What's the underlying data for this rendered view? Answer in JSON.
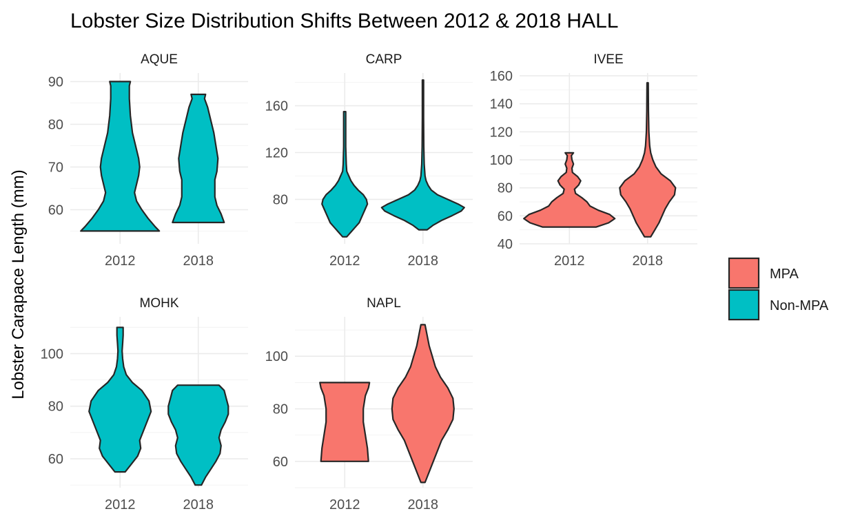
{
  "chart_data": {
    "type": "violin",
    "title": "Lobster Size Distribution Shifts Between 2012 & 2018 HALL",
    "ylabel": "Lobster Carapace Length (mm)",
    "xlabel": "",
    "categories": [
      "2012",
      "2018"
    ],
    "colors": {
      "MPA": "#F8766D",
      "Non-MPA": "#00BFC4"
    },
    "legend": {
      "position": "right",
      "entries": [
        {
          "label": "MPA",
          "color": "#F8766D"
        },
        {
          "label": "Non-MPA",
          "color": "#00BFC4"
        }
      ]
    },
    "panels": [
      {
        "site": "AQUE",
        "group": "Non-MPA",
        "ylim": [
          52,
          92
        ],
        "yticks": [
          60,
          70,
          80,
          90
        ],
        "violins": [
          {
            "year": "2012",
            "min": 55,
            "max": 90,
            "profile": [
              [
                55,
                0.38
              ],
              [
                56,
                0.34
              ],
              [
                58,
                0.27
              ],
              [
                60,
                0.21
              ],
              [
                62,
                0.16
              ],
              [
                64,
                0.14
              ],
              [
                66,
                0.16
              ],
              [
                68,
                0.18
              ],
              [
                70,
                0.19
              ],
              [
                72,
                0.18
              ],
              [
                75,
                0.15
              ],
              [
                78,
                0.12
              ],
              [
                82,
                0.1
              ],
              [
                86,
                0.09
              ],
              [
                89,
                0.09
              ],
              [
                90,
                0.1
              ]
            ]
          },
          {
            "year": "2018",
            "min": 57,
            "max": 87,
            "profile": [
              [
                57,
                0.25
              ],
              [
                59,
                0.22
              ],
              [
                61,
                0.18
              ],
              [
                63,
                0.16
              ],
              [
                65,
                0.16
              ],
              [
                67,
                0.16
              ],
              [
                69,
                0.18
              ],
              [
                72,
                0.19
              ],
              [
                75,
                0.17
              ],
              [
                78,
                0.15
              ],
              [
                81,
                0.12
              ],
              [
                84,
                0.09
              ],
              [
                86,
                0.06
              ],
              [
                87,
                0.07
              ]
            ]
          }
        ]
      },
      {
        "site": "CARP",
        "group": "Non-MPA",
        "ylim": [
          42,
          188
        ],
        "yticks": [
          80,
          120,
          160
        ],
        "violins": [
          {
            "year": "2012",
            "min": 48,
            "max": 155,
            "profile": [
              [
                48,
                0.02
              ],
              [
                52,
                0.06
              ],
              [
                56,
                0.1
              ],
              [
                60,
                0.14
              ],
              [
                64,
                0.16
              ],
              [
                68,
                0.18
              ],
              [
                72,
                0.2
              ],
              [
                76,
                0.22
              ],
              [
                80,
                0.21
              ],
              [
                84,
                0.18
              ],
              [
                88,
                0.13
              ],
              [
                92,
                0.09
              ],
              [
                96,
                0.06
              ],
              [
                100,
                0.04
              ],
              [
                104,
                0.02
              ],
              [
                110,
                0.015
              ],
              [
                125,
                0.01
              ],
              [
                140,
                0.01
              ],
              [
                150,
                0.01
              ],
              [
                155,
                0.01
              ]
            ]
          },
          {
            "year": "2018",
            "min": 54,
            "max": 182,
            "profile": [
              [
                54,
                0.04
              ],
              [
                58,
                0.1
              ],
              [
                62,
                0.18
              ],
              [
                66,
                0.28
              ],
              [
                70,
                0.37
              ],
              [
                73,
                0.4
              ],
              [
                76,
                0.34
              ],
              [
                80,
                0.24
              ],
              [
                84,
                0.14
              ],
              [
                88,
                0.08
              ],
              [
                92,
                0.05
              ],
              [
                96,
                0.03
              ],
              [
                100,
                0.02
              ],
              [
                110,
                0.012
              ],
              [
                125,
                0.008
              ],
              [
                150,
                0.006
              ],
              [
                182,
                0.006
              ]
            ]
          }
        ]
      },
      {
        "site": "IVEE",
        "group": "MPA",
        "ylim": [
          40,
          162
        ],
        "yticks": [
          40,
          60,
          80,
          100,
          120,
          140,
          160
        ],
        "violins": [
          {
            "year": "2012",
            "min": 52,
            "max": 105,
            "profile": [
              [
                52,
                0.26
              ],
              [
                55,
                0.38
              ],
              [
                58,
                0.44
              ],
              [
                61,
                0.39
              ],
              [
                64,
                0.28
              ],
              [
                67,
                0.2
              ],
              [
                70,
                0.17
              ],
              [
                73,
                0.12
              ],
              [
                76,
                0.06
              ],
              [
                79,
                0.05
              ],
              [
                82,
                0.09
              ],
              [
                85,
                0.11
              ],
              [
                88,
                0.08
              ],
              [
                91,
                0.03
              ],
              [
                94,
                0.025
              ],
              [
                97,
                0.04
              ],
              [
                100,
                0.025
              ],
              [
                103,
                0.02
              ],
              [
                105,
                0.04
              ]
            ]
          },
          {
            "year": "2018",
            "min": 45,
            "max": 155,
            "profile": [
              [
                45,
                0.03
              ],
              [
                50,
                0.07
              ],
              [
                55,
                0.11
              ],
              [
                60,
                0.14
              ],
              [
                65,
                0.17
              ],
              [
                70,
                0.21
              ],
              [
                75,
                0.26
              ],
              [
                80,
                0.27
              ],
              [
                85,
                0.22
              ],
              [
                90,
                0.13
              ],
              [
                95,
                0.08
              ],
              [
                100,
                0.05
              ],
              [
                105,
                0.03
              ],
              [
                110,
                0.02
              ],
              [
                120,
                0.012
              ],
              [
                135,
                0.008
              ],
              [
                155,
                0.006
              ]
            ]
          }
        ]
      },
      {
        "site": "MOHK",
        "group": "Non-MPA",
        "ylim": [
          49,
          114
        ],
        "yticks": [
          60,
          80,
          100
        ],
        "violins": [
          {
            "year": "2012",
            "min": 55,
            "max": 110,
            "profile": [
              [
                55,
                0.05
              ],
              [
                58,
                0.11
              ],
              [
                61,
                0.17
              ],
              [
                64,
                0.2
              ],
              [
                67,
                0.19
              ],
              [
                70,
                0.22
              ],
              [
                74,
                0.26
              ],
              [
                78,
                0.3
              ],
              [
                82,
                0.28
              ],
              [
                86,
                0.21
              ],
              [
                89,
                0.12
              ],
              [
                92,
                0.06
              ],
              [
                95,
                0.035
              ],
              [
                98,
                0.025
              ],
              [
                101,
                0.02
              ],
              [
                104,
                0.025
              ],
              [
                107,
                0.03
              ],
              [
                110,
                0.03
              ]
            ]
          },
          {
            "year": "2018",
            "min": 50,
            "max": 88,
            "profile": [
              [
                50,
                0.03
              ],
              [
                53,
                0.07
              ],
              [
                56,
                0.12
              ],
              [
                59,
                0.17
              ],
              [
                62,
                0.21
              ],
              [
                65,
                0.22
              ],
              [
                68,
                0.2
              ],
              [
                71,
                0.22
              ],
              [
                74,
                0.26
              ],
              [
                77,
                0.29
              ],
              [
                80,
                0.29
              ],
              [
                83,
                0.27
              ],
              [
                86,
                0.25
              ],
              [
                88,
                0.2
              ]
            ]
          }
        ]
      },
      {
        "site": "NAPL",
        "group": "MPA",
        "ylim": [
          50,
          115
        ],
        "yticks": [
          60,
          80,
          100
        ],
        "violins": [
          {
            "year": "2012",
            "min": 60,
            "max": 90,
            "profile": [
              [
                60,
                0.23
              ],
              [
                65,
                0.22
              ],
              [
                70,
                0.2
              ],
              [
                75,
                0.18
              ],
              [
                80,
                0.18
              ],
              [
                85,
                0.2
              ],
              [
                88,
                0.23
              ],
              [
                90,
                0.24
              ]
            ]
          },
          {
            "year": "2018",
            "min": 52,
            "max": 112,
            "profile": [
              [
                52,
                0.02
              ],
              [
                56,
                0.06
              ],
              [
                60,
                0.1
              ],
              [
                64,
                0.14
              ],
              [
                68,
                0.18
              ],
              [
                72,
                0.24
              ],
              [
                76,
                0.29
              ],
              [
                80,
                0.3
              ],
              [
                84,
                0.29
              ],
              [
                88,
                0.24
              ],
              [
                92,
                0.17
              ],
              [
                96,
                0.12
              ],
              [
                100,
                0.09
              ],
              [
                104,
                0.06
              ],
              [
                108,
                0.04
              ],
              [
                112,
                0.02
              ]
            ]
          }
        ]
      }
    ]
  }
}
